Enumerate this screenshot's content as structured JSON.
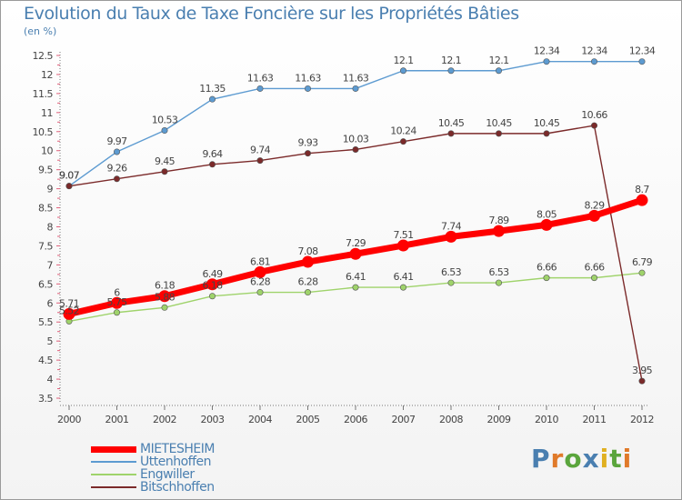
{
  "header": {
    "title": "Evolution du Taux de Taxe Foncière sur les Propriétés Bâties",
    "unit": "(en %)"
  },
  "logo": {
    "text": "Proxiti",
    "colors": [
      "#4a7fb0",
      "#e07a2a",
      "#5aa53c",
      "#4a7fb0",
      "#e0b020",
      "#5aa53c",
      "#e07a2a"
    ]
  },
  "chart_data": {
    "type": "line",
    "title": "Evolution du Taux de Taxe Foncière sur les Propriétés Bâties",
    "ylabel": "(en %)",
    "xlabel": "",
    "categories": [
      "2000",
      "2001",
      "2002",
      "2003",
      "2004",
      "2005",
      "2006",
      "2007",
      "2008",
      "2009",
      "2010",
      "2011",
      "2012"
    ],
    "ylim": [
      3.5,
      12.5
    ],
    "yticks": [
      "3.5",
      "4",
      "4.5",
      "5",
      "5.5",
      "6",
      "6.5",
      "7",
      "7.5",
      "8",
      "8.5",
      "9",
      "9.5",
      "10",
      "10.5",
      "11",
      "11.5",
      "12",
      "12.5"
    ],
    "grid": false,
    "legend": "bottom-left",
    "series": [
      {
        "name": "MIETESHEIM",
        "color": "#ff0000",
        "bold": true,
        "values": [
          5.71,
          6,
          6.18,
          6.49,
          6.81,
          7.08,
          7.29,
          7.51,
          7.74,
          7.89,
          8.05,
          8.29,
          8.7
        ],
        "labels": [
          "5.71",
          "6",
          "6.18",
          "6.49",
          "6.81",
          "7.08",
          "7.29",
          "7.51",
          "7.74",
          "7.89",
          "8.05",
          "8.29",
          "8.7"
        ]
      },
      {
        "name": "Uttenhoffen",
        "color": "#5d9bd1",
        "values": [
          9.07,
          9.97,
          10.53,
          11.35,
          11.63,
          11.63,
          11.63,
          12.1,
          12.1,
          12.1,
          12.34,
          12.34,
          12.34
        ],
        "labels": [
          "9.07",
          "9.97",
          "10.53",
          "11.35",
          "11.63",
          "11.63",
          "11.63",
          "12.1",
          "12.1",
          "12.1",
          "12.34",
          "12.34",
          "12.34"
        ]
      },
      {
        "name": "Engwiller",
        "color": "#9fd36b",
        "values": [
          5.52,
          5.75,
          5.88,
          6.18,
          6.28,
          6.28,
          6.41,
          6.41,
          6.53,
          6.53,
          6.66,
          6.66,
          6.79
        ],
        "labels": [
          "5.52",
          "5.75",
          "5.88",
          "6.18",
          "6.28",
          "6.28",
          "6.41",
          "6.41",
          "6.53",
          "6.53",
          "6.66",
          "6.66",
          "6.79"
        ]
      },
      {
        "name": "Bitschhoffen",
        "color": "#7b2a2a",
        "values": [
          9.07,
          9.26,
          9.45,
          9.64,
          9.74,
          9.93,
          10.03,
          10.24,
          10.45,
          10.45,
          10.45,
          10.66,
          3.95
        ],
        "labels": [
          "9.07",
          "9.26",
          "9.45",
          "9.64",
          "9.74",
          "9.93",
          "10.03",
          "10.24",
          "10.45",
          "10.45",
          "10.45",
          "10.66",
          "3.95"
        ]
      }
    ]
  }
}
